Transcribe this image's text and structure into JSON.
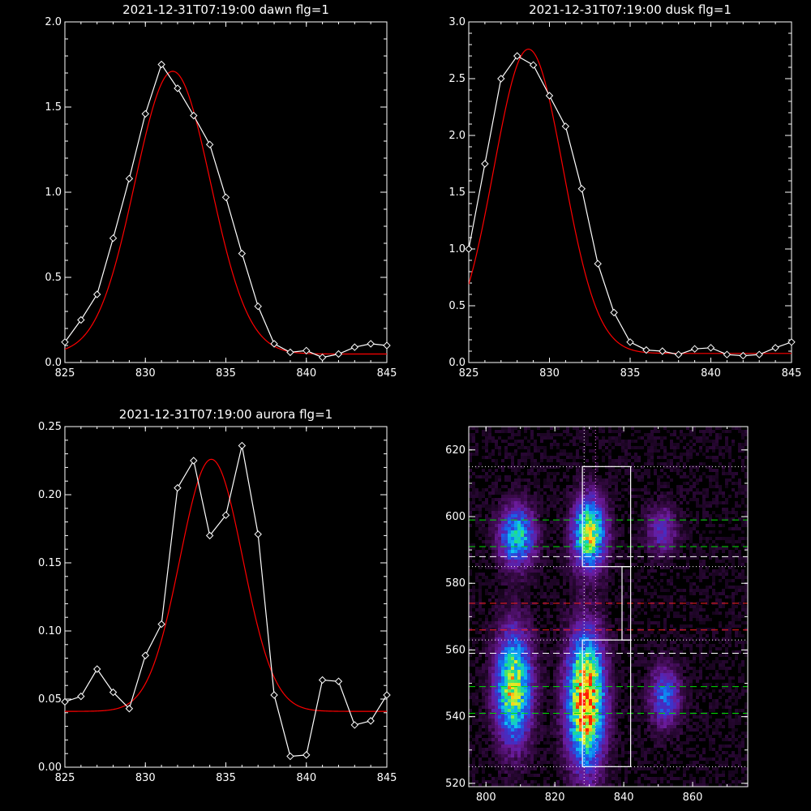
{
  "chart_data": [
    {
      "type": "line",
      "title": "2021-12-31T07:19:00 dawn flg=1",
      "xlim": [
        825,
        845
      ],
      "ylim": [
        0,
        2.0
      ],
      "xticks": [
        825,
        830,
        835,
        840,
        845
      ],
      "yticks": [
        0.0,
        0.5,
        1.0,
        1.5,
        2.0
      ],
      "ytick_labels": [
        "0.0",
        "0.5",
        "1.0",
        "1.5",
        "2.0"
      ],
      "series": [
        {
          "role": "data",
          "color": "#ffffff",
          "marker": "diamond",
          "x": [
            825,
            826,
            827,
            828,
            829,
            830,
            831,
            832,
            833,
            834,
            835,
            836,
            837,
            838,
            839,
            840,
            841,
            842,
            843,
            844,
            845
          ],
          "y": [
            0.12,
            0.25,
            0.4,
            0.73,
            1.08,
            1.46,
            1.75,
            1.61,
            1.45,
            1.28,
            0.97,
            0.64,
            0.33,
            0.11,
            0.06,
            0.07,
            0.03,
            0.05,
            0.09,
            0.11,
            0.1
          ]
        },
        {
          "role": "fit",
          "color": "#ff0000",
          "gauss": {
            "amp": 1.66,
            "center": 831.7,
            "sigma": 2.35,
            "base": 0.05
          }
        }
      ]
    },
    {
      "type": "line",
      "title": "2021-12-31T07:19:00 dusk flg=1",
      "xlim": [
        825,
        845
      ],
      "ylim": [
        0,
        3.0
      ],
      "xticks": [
        825,
        830,
        835,
        840,
        845
      ],
      "yticks": [
        0.0,
        0.5,
        1.0,
        1.5,
        2.0,
        2.5,
        3.0
      ],
      "ytick_labels": [
        "0.0",
        "0.5",
        "1.0",
        "1.5",
        "2.0",
        "2.5",
        "3.0"
      ],
      "series": [
        {
          "role": "data",
          "color": "#ffffff",
          "marker": "diamond",
          "x": [
            825,
            826,
            827,
            828,
            829,
            830,
            831,
            832,
            833,
            834,
            835,
            836,
            837,
            838,
            839,
            840,
            841,
            842,
            843,
            844,
            845
          ],
          "y": [
            1.0,
            1.75,
            2.5,
            2.7,
            2.62,
            2.35,
            2.08,
            1.53,
            0.87,
            0.44,
            0.18,
            0.11,
            0.1,
            0.07,
            0.12,
            0.13,
            0.07,
            0.06,
            0.07,
            0.13,
            0.18
          ]
        },
        {
          "role": "fit",
          "color": "#ff0000",
          "gauss": {
            "amp": 2.68,
            "center": 828.7,
            "sigma": 2.15,
            "base": 0.08
          }
        }
      ]
    },
    {
      "type": "line",
      "title": "2021-12-31T07:19:00 aurora flg=1",
      "xlim": [
        825,
        845
      ],
      "ylim": [
        0,
        0.25
      ],
      "xticks": [
        825,
        830,
        835,
        840,
        845
      ],
      "yticks": [
        0.0,
        0.05,
        0.1,
        0.15,
        0.2,
        0.25
      ],
      "ytick_labels": [
        "0.00",
        "0.05",
        "0.10",
        "0.15",
        "0.20",
        "0.25"
      ],
      "series": [
        {
          "role": "data",
          "color": "#ffffff",
          "marker": "diamond",
          "x": [
            825,
            826,
            827,
            828,
            829,
            830,
            831,
            832,
            833,
            834,
            835,
            836,
            837,
            838,
            839,
            840,
            841,
            842,
            843,
            844,
            845
          ],
          "y": [
            0.048,
            0.052,
            0.072,
            0.055,
            0.043,
            0.082,
            0.105,
            0.205,
            0.225,
            0.17,
            0.185,
            0.236,
            0.171,
            0.053,
            0.008,
            0.009,
            0.064,
            0.063,
            0.031,
            0.034,
            0.053
          ]
        },
        {
          "role": "fit",
          "color": "#ff0000",
          "gauss": {
            "amp": 0.185,
            "center": 834.1,
            "sigma": 1.95,
            "base": 0.041
          }
        }
      ]
    },
    {
      "type": "heatmap",
      "title": "",
      "xlim": [
        795,
        876
      ],
      "ylim": [
        519,
        627
      ],
      "xticks": [
        800,
        820,
        840,
        860
      ],
      "yticks": [
        520,
        540,
        560,
        580,
        600,
        620
      ],
      "colormap": [
        "#000000",
        "#3a0a4a",
        "#6a1a9a",
        "#4030c8",
        "#1070f0",
        "#10c0f0",
        "#20e080",
        "#c0f030",
        "#ffe020",
        "#ff2000"
      ],
      "blobs": [
        {
          "cx": 808,
          "cy": 549,
          "rx": 3.5,
          "ry": 11,
          "peak": 0.78
        },
        {
          "cx": 809,
          "cy": 594,
          "rx": 3.5,
          "ry": 6,
          "peak": 0.55
        },
        {
          "cx": 829,
          "cy": 545,
          "rx": 3.6,
          "ry": 13,
          "peak": 1.0
        },
        {
          "cx": 830,
          "cy": 595,
          "rx": 3.2,
          "ry": 7,
          "peak": 0.78
        },
        {
          "cx": 852,
          "cy": 546,
          "rx": 3.0,
          "ry": 6,
          "peak": 0.38
        },
        {
          "cx": 851,
          "cy": 596,
          "rx": 3.0,
          "ry": 5,
          "peak": 0.25
        }
      ],
      "boxes": [
        {
          "x0": 828,
          "x1": 842,
          "y0": 585,
          "y1": 615,
          "color": "#ffffff"
        },
        {
          "x0": 828,
          "x1": 842,
          "y0": 525,
          "y1": 563,
          "color": "#ffffff"
        },
        {
          "x0": 839.5,
          "x1": 842,
          "y0": 563,
          "y1": 585,
          "color": "#ffffff"
        }
      ],
      "vlines": [
        {
          "x": 828.5,
          "color": "#ffffff",
          "style": "dotted"
        },
        {
          "x": 831.8,
          "color": "#ff80ff",
          "style": "dotted"
        }
      ],
      "hlines": [
        {
          "y": 615,
          "color": "#ffffff",
          "style": "dotted"
        },
        {
          "y": 599,
          "color": "#00e000",
          "style": "dashed"
        },
        {
          "y": 591,
          "color": "#00e000",
          "style": "dashed"
        },
        {
          "y": 588,
          "color": "#ffffff",
          "style": "dashed"
        },
        {
          "y": 585,
          "color": "#ffffff",
          "style": "dotted"
        },
        {
          "y": 574,
          "color": "#ff2020",
          "style": "dashed"
        },
        {
          "y": 566,
          "color": "#ff2020",
          "style": "dashed"
        },
        {
          "y": 563,
          "color": "#ffffff",
          "style": "dotted"
        },
        {
          "y": 559,
          "color": "#ffffff",
          "style": "dashed"
        },
        {
          "y": 549,
          "color": "#00e000",
          "style": "dashed"
        },
        {
          "y": 541,
          "color": "#00e000",
          "style": "dashed"
        },
        {
          "y": 525,
          "color": "#ffffff",
          "style": "dotted"
        }
      ]
    }
  ]
}
